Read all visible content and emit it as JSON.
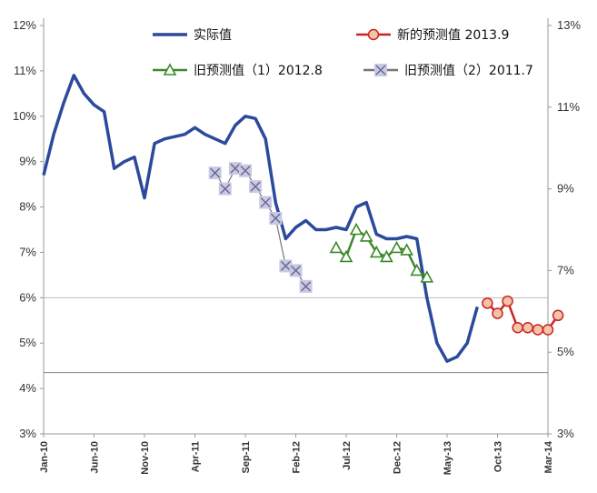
{
  "chart_data": {
    "type": "line",
    "left_axis": {
      "ticks": [
        "3%",
        "4%",
        "5%",
        "6%",
        "7%",
        "8%",
        "9%",
        "10%",
        "11%",
        "12%"
      ],
      "min": 3,
      "max": 12
    },
    "right_axis": {
      "ticks": [
        "3%",
        "5%",
        "7%",
        "9%",
        "11%",
        "13%"
      ],
      "min": 3,
      "max": 13
    },
    "x_ticks": [
      "Jan-10",
      "Jun-10",
      "Nov-10",
      "Apr-11",
      "Sep-11",
      "Feb-12",
      "Jul-12",
      "Dec-12",
      "May-13",
      "Oct-13",
      "Mar-14"
    ],
    "x_start": "2010-01",
    "series": [
      {
        "name": "实际值",
        "axis": "left",
        "color": "#2b4a9c",
        "marker": "none",
        "points": [
          [
            "2010-01",
            8.7
          ],
          [
            "2010-02",
            9.6
          ],
          [
            "2010-03",
            10.3
          ],
          [
            "2010-04",
            10.9
          ],
          [
            "2010-05",
            10.5
          ],
          [
            "2010-06",
            10.25
          ],
          [
            "2010-07",
            10.1
          ],
          [
            "2010-08",
            8.85
          ],
          [
            "2010-09",
            9.0
          ],
          [
            "2010-10",
            9.1
          ],
          [
            "2010-11",
            8.2
          ],
          [
            "2010-12",
            9.4
          ],
          [
            "2011-01",
            9.5
          ],
          [
            "2011-02",
            9.55
          ],
          [
            "2011-03",
            9.6
          ],
          [
            "2011-04",
            9.75
          ],
          [
            "2011-05",
            9.6
          ],
          [
            "2011-06",
            9.5
          ],
          [
            "2011-07",
            9.4
          ],
          [
            "2011-08",
            9.8
          ],
          [
            "2011-09",
            10.0
          ],
          [
            "2011-10",
            9.95
          ],
          [
            "2011-11",
            9.5
          ],
          [
            "2011-12",
            8.1
          ],
          [
            "2012-01",
            7.3
          ],
          [
            "2012-02",
            7.55
          ],
          [
            "2012-03",
            7.7
          ],
          [
            "2012-04",
            7.5
          ],
          [
            "2012-05",
            7.5
          ],
          [
            "2012-06",
            7.55
          ],
          [
            "2012-07",
            7.5
          ],
          [
            "2012-08",
            8.0
          ],
          [
            "2012-09",
            8.1
          ],
          [
            "2012-10",
            7.4
          ],
          [
            "2012-11",
            7.3
          ],
          [
            "2012-12",
            7.3
          ],
          [
            "2013-01",
            7.35
          ],
          [
            "2013-02",
            7.3
          ],
          [
            "2013-03",
            6.0
          ],
          [
            "2013-04",
            5.0
          ],
          [
            "2013-05",
            4.6
          ],
          [
            "2013-06",
            4.7
          ],
          [
            "2013-07",
            5.0
          ],
          [
            "2013-08",
            5.8
          ]
        ]
      },
      {
        "name": "新的预测值 2013.9",
        "axis": "right",
        "color": "#cc2222",
        "marker": "circle",
        "points": [
          [
            "2013-09",
            6.2
          ],
          [
            "2013-10",
            5.95
          ],
          [
            "2013-11",
            6.25
          ],
          [
            "2013-12",
            5.6
          ],
          [
            "2014-01",
            5.6
          ],
          [
            "2014-02",
            5.55
          ],
          [
            "2014-03",
            5.55
          ],
          [
            "2014-04",
            5.9
          ]
        ]
      },
      {
        "name": "旧预测值（1）2012.8",
        "axis": "left",
        "color": "#3a8a2a",
        "marker": "triangle",
        "points": [
          [
            "2012-06",
            7.1
          ],
          [
            "2012-07",
            6.9
          ],
          [
            "2012-08",
            7.5
          ],
          [
            "2012-09",
            7.35
          ],
          [
            "2012-10",
            7.0
          ],
          [
            "2012-11",
            6.9
          ],
          [
            "2012-12",
            7.1
          ],
          [
            "2013-01",
            7.05
          ],
          [
            "2013-02",
            6.6
          ],
          [
            "2013-03",
            6.45
          ]
        ]
      },
      {
        "name": "旧预测值（2）2011.7",
        "axis": "left",
        "color": "#8888aa",
        "marker": "x-square",
        "points": [
          [
            "2011-06",
            8.75
          ],
          [
            "2011-07",
            8.4
          ],
          [
            "2011-08",
            8.85
          ],
          [
            "2011-09",
            8.8
          ],
          [
            "2011-10",
            8.45
          ],
          [
            "2011-11",
            8.1
          ],
          [
            "2011-12",
            7.75
          ],
          [
            "2012-01",
            6.7
          ],
          [
            "2012-02",
            6.6
          ],
          [
            "2012-03",
            6.25
          ]
        ]
      }
    ],
    "reference_line_left": 6,
    "reference_line_right": 4.5
  }
}
